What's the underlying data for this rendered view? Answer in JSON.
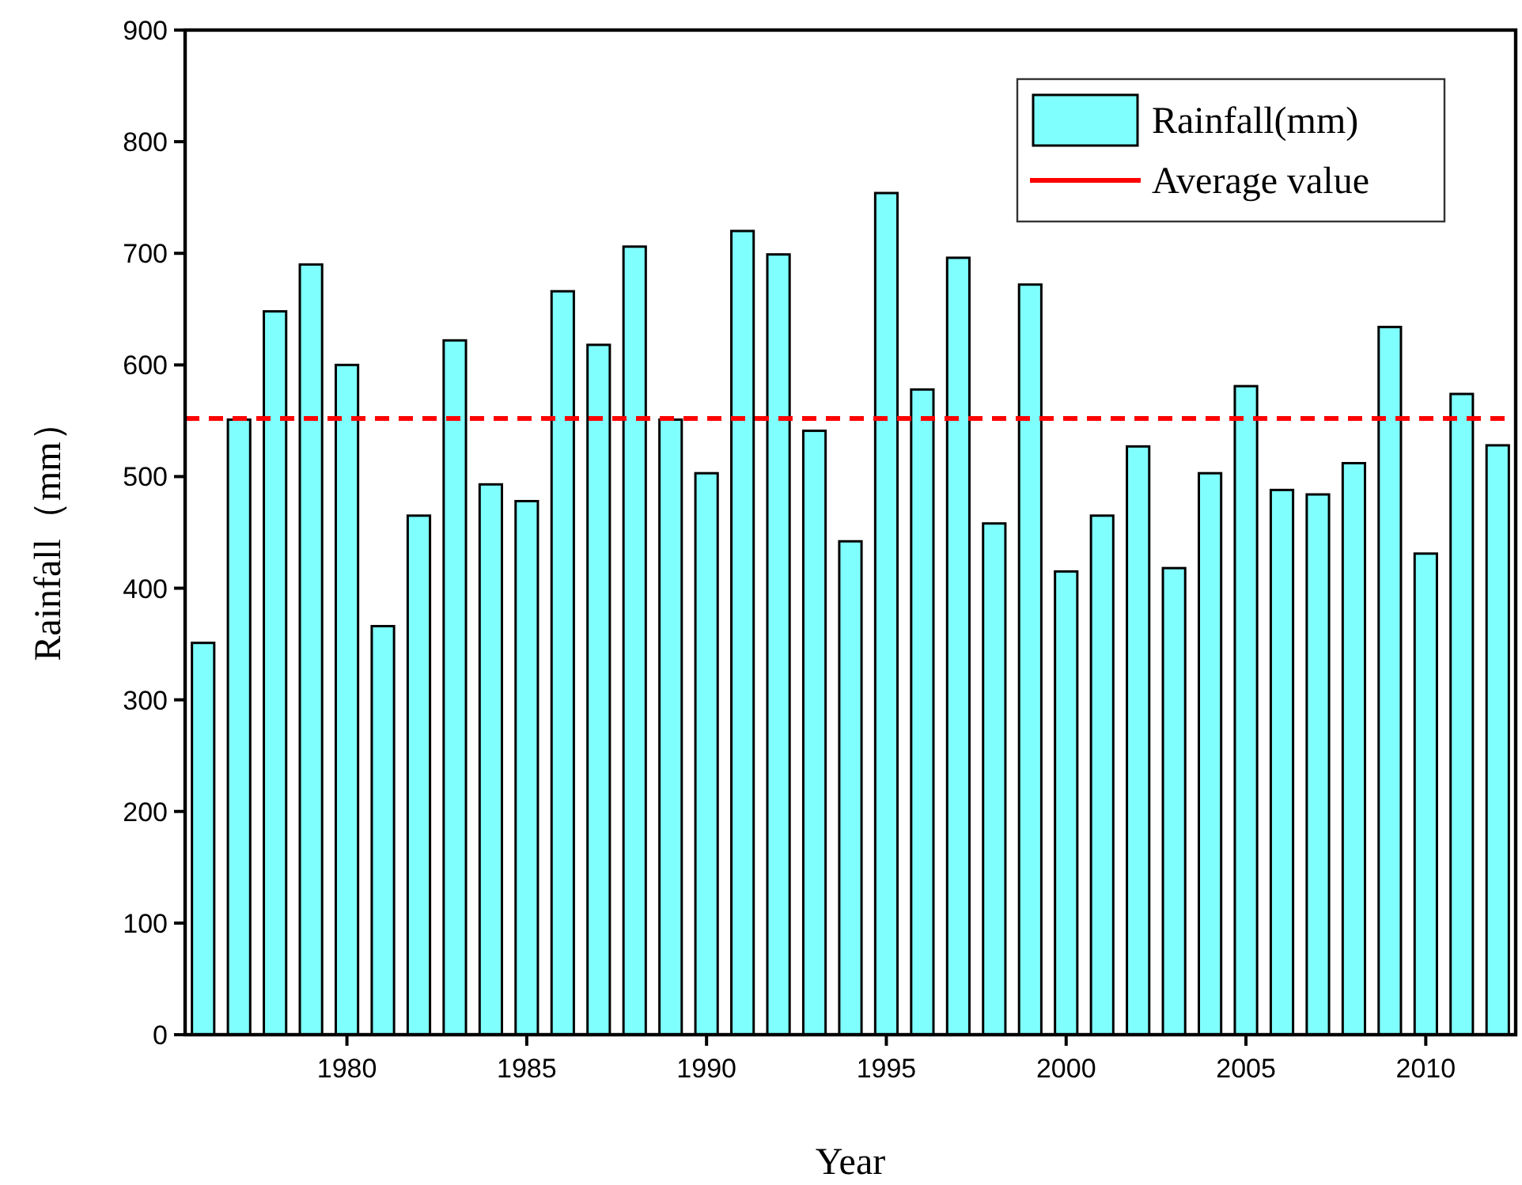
{
  "chart_data": {
    "type": "bar",
    "xlabel": "Year",
    "ylabel": "Rainfall（mm）",
    "x": [
      1976,
      1977,
      1978,
      1979,
      1980,
      1981,
      1982,
      1983,
      1984,
      1985,
      1986,
      1987,
      1988,
      1989,
      1990,
      1991,
      1992,
      1993,
      1994,
      1995,
      1996,
      1997,
      1998,
      1999,
      2000,
      2001,
      2002,
      2003,
      2004,
      2005,
      2006,
      2007,
      2008,
      2009,
      2010,
      2011,
      2012
    ],
    "series": [
      {
        "name": "Rainfall(mm)",
        "color": "#80ffff",
        "values": [
          351,
          551,
          648,
          690,
          600,
          366,
          465,
          622,
          493,
          478,
          666,
          618,
          706,
          551,
          503,
          720,
          699,
          541,
          442,
          754,
          578,
          696,
          458,
          672,
          415,
          465,
          527,
          418,
          503,
          581,
          488,
          484,
          512,
          634,
          431,
          574,
          528
        ]
      }
    ],
    "xlim": [
      1975.5,
      2012.5
    ],
    "xticks": [
      1980,
      1985,
      1990,
      1995,
      2000,
      2005,
      2010
    ],
    "ylim": [
      0,
      900
    ],
    "yticks": [
      0,
      100,
      200,
      300,
      400,
      500,
      600,
      700,
      800,
      900
    ],
    "ref_lines": [
      {
        "axis": "y",
        "value": 552,
        "label": "Average value",
        "color": "#ff0000",
        "line_style": "dashed"
      }
    ],
    "grid": false,
    "legend": "top right"
  }
}
